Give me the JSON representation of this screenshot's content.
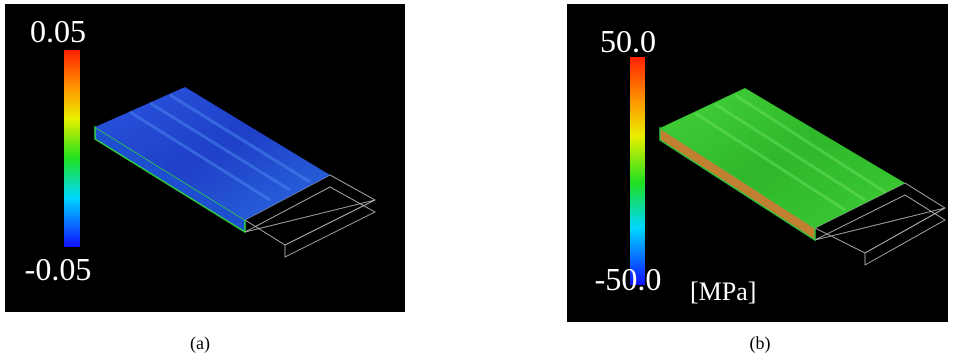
{
  "panels": [
    {
      "colorbar": {
        "max": "0.05",
        "min": "-0.05"
      },
      "caption": "(a)"
    },
    {
      "colorbar": {
        "max": "50.0",
        "min": "-50.0"
      },
      "unit": "[MPa]",
      "caption": "(b)"
    }
  ]
}
